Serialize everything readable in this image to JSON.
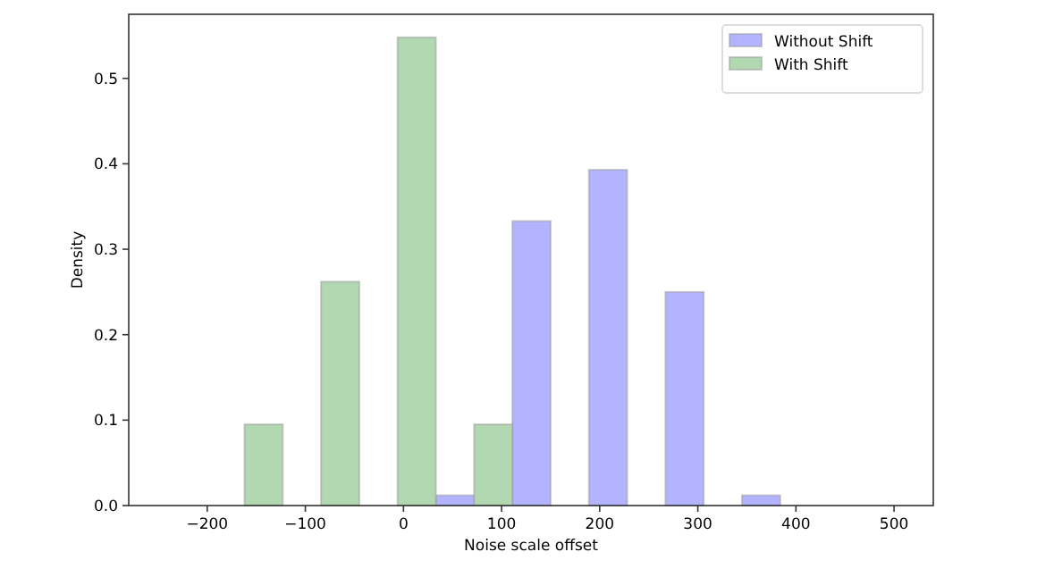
{
  "chart_data": {
    "type": "histogram",
    "xlabel": "Noise scale offset",
    "ylabel": "Density",
    "xlim": [
      -280,
      540
    ],
    "ylim": [
      0,
      0.575
    ],
    "xticks": [
      {
        "value": -200,
        "label": "−200"
      },
      {
        "value": -100,
        "label": "−100"
      },
      0,
      100,
      200,
      300,
      400,
      500
    ],
    "yticks": [
      {
        "value": 0,
        "label": "0.0"
      },
      0.1,
      0.2,
      0.3,
      0.4,
      0.5
    ],
    "legend": "top right",
    "bins": [
      -162,
      -123,
      -84,
      -45,
      -6,
      33,
      72,
      111,
      150,
      189,
      228,
      267,
      306,
      345,
      384
    ],
    "series": [
      {
        "name": "Without Shift",
        "color": "#b3b3ff",
        "values": [
          0,
          0,
          0,
          0,
          0,
          0.012,
          0,
          0.333,
          0,
          0.393,
          0,
          0.25,
          0,
          0.012
        ]
      },
      {
        "name": "With Shift",
        "color": "#b2d8b2",
        "values": [
          0.095,
          0,
          0.262,
          0,
          0.548,
          0,
          0.095,
          0,
          0,
          0,
          0,
          0,
          0,
          0
        ]
      }
    ]
  }
}
